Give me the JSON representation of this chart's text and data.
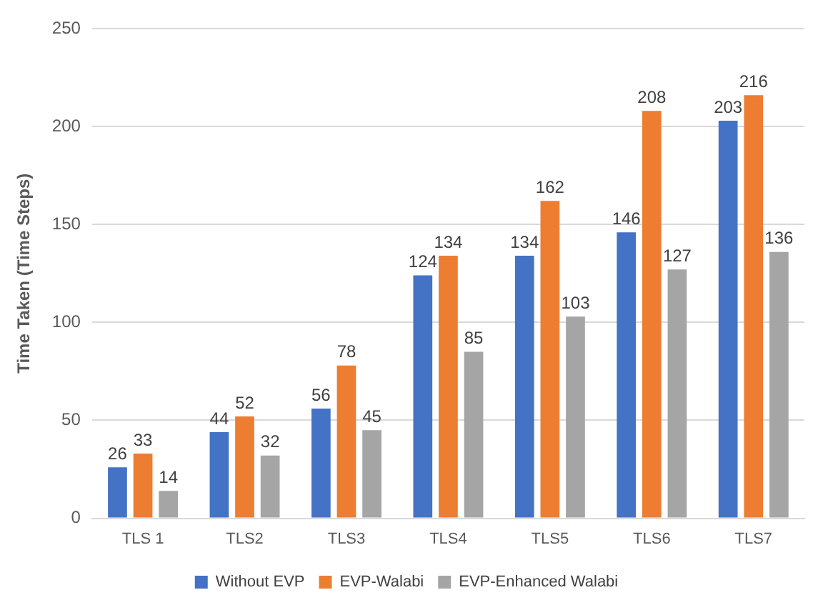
{
  "chart_data": {
    "type": "bar",
    "ylabel": "Time Taken (Time Steps)",
    "categories": [
      "TLS 1",
      "TLS2",
      "TLS3",
      "TLS4",
      "TLS5",
      "TLS6",
      "TLS7"
    ],
    "series": [
      {
        "name": "Without EVP",
        "color": "#4472c4",
        "values": [
          26,
          44,
          56,
          124,
          134,
          146,
          203
        ]
      },
      {
        "name": "EVP-Walabi",
        "color": "#ed7d31",
        "values": [
          33,
          52,
          78,
          134,
          162,
          208,
          216
        ]
      },
      {
        "name": "EVP-Enhanced Walabi",
        "color": "#a5a5a5",
        "values": [
          14,
          32,
          45,
          85,
          103,
          127,
          136
        ]
      }
    ],
    "ylim": [
      0,
      250
    ],
    "yticks": [
      0,
      50,
      100,
      150,
      200,
      250
    ],
    "grid": "y",
    "legend": "bottom",
    "data_labels": true
  }
}
